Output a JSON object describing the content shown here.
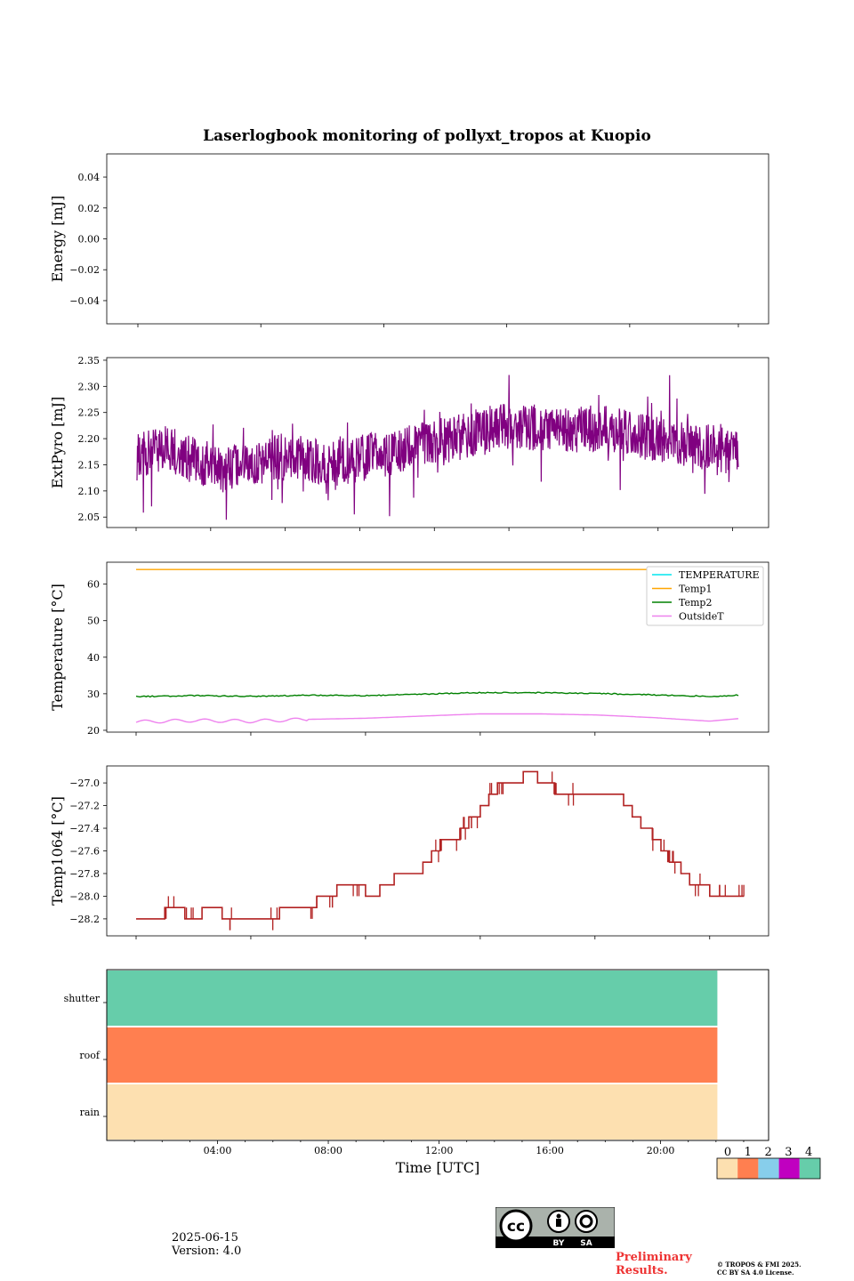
{
  "title": "Laserlogbook monitoring of pollyxt_tropos at Kuopio",
  "footer": {
    "date": "2025-06-15",
    "version": "Version: 4.0",
    "preliminary": [
      "Preliminary",
      "Results."
    ],
    "copyright": [
      "© TROPOS & FMI 2025.",
      "CC BY SA 4.0 License."
    ],
    "license_badge": [
      "BY",
      "SA"
    ]
  },
  "colors": {
    "extpyro": "#800080",
    "temperature": "#00e5ee",
    "temp1": "#ffa500",
    "temp2": "#008000",
    "outside": "#ee82ee",
    "temp1064": "#b22222",
    "status0": "#fde0b0",
    "status1": "#ff7f50",
    "status2": "#87ceeb",
    "status3": "#c000c0",
    "status4": "#66cdaa"
  },
  "chart_data": [
    {
      "type": "line",
      "ylabel": "Energy [mJ]",
      "yticks": [
        "0.04",
        "0.02",
        "0.00",
        "−0.02",
        "−0.04"
      ],
      "ylim": [
        -0.055,
        0.055
      ],
      "series": []
    },
    {
      "type": "line",
      "ylabel": "ExtPyro [mJ]",
      "yticks": [
        "2.35",
        "2.30",
        "2.25",
        "2.20",
        "2.15",
        "2.10",
        "2.05"
      ],
      "ylim": [
        2.03,
        2.355
      ],
      "x_hours": [
        1,
        2,
        3,
        4,
        5,
        6,
        7,
        8,
        9,
        10,
        11,
        12,
        13,
        14,
        15,
        16,
        17,
        18,
        19,
        20,
        21,
        22
      ],
      "series": [
        {
          "mean": [
            2.165,
            2.18,
            2.16,
            2.14,
            2.15,
            2.165,
            2.16,
            2.155,
            2.165,
            2.17,
            2.19,
            2.2,
            2.215,
            2.225,
            2.22,
            2.215,
            2.22,
            2.215,
            2.2,
            2.19,
            2.185,
            2.17
          ],
          "min": 2.045,
          "max": 2.34
        }
      ]
    },
    {
      "type": "line",
      "ylabel": "Temperature [°C]",
      "yticks": [
        "60",
        "50",
        "40",
        "30",
        "20"
      ],
      "ylim": [
        19.5,
        66
      ],
      "x_hours": [
        1,
        3,
        5,
        7,
        9,
        11,
        13,
        15,
        17,
        19,
        21,
        22
      ],
      "legend": [
        "TEMPERATURE",
        "Temp1",
        "Temp2",
        "OutsideT"
      ],
      "series": [
        {
          "name": "TEMPERATURE",
          "values": []
        },
        {
          "name": "Temp1",
          "values": [
            64,
            64,
            64,
            64,
            64,
            64,
            64,
            64,
            64,
            64,
            64,
            64
          ]
        },
        {
          "name": "Temp2",
          "values": [
            29.2,
            29.5,
            29.3,
            29.6,
            29.5,
            29.9,
            30.3,
            30.3,
            30.1,
            29.7,
            29.3,
            29.6
          ]
        },
        {
          "name": "OutsideT",
          "values": [
            22.3,
            22.7,
            22.5,
            23.0,
            23.3,
            23.9,
            24.5,
            24.5,
            24.2,
            23.5,
            22.5,
            23.2
          ]
        }
      ]
    },
    {
      "type": "line",
      "ylabel": "Temp1064 [°C]",
      "yticks": [
        "−27.0",
        "−27.2",
        "−27.4",
        "−27.6",
        "−27.8",
        "−28.0",
        "−28.2"
      ],
      "ylim": [
        -28.35,
        -26.85
      ],
      "series": [
        {
          "name": "Temp1064",
          "x": [
            1.0,
            2.0,
            2.7,
            3.3,
            4.0,
            5.0,
            5.3,
            5.6,
            6.0,
            7.0,
            7.3,
            7.6,
            8.0,
            8.5,
            9.0,
            9.5,
            10.0,
            10.5,
            11.0,
            11.3,
            11.6,
            12.0,
            12.3,
            12.6,
            13.0,
            13.3,
            13.6,
            14.0,
            14.5,
            15.0,
            15.3,
            15.6,
            16.0,
            16.5,
            17.0,
            17.5,
            18.0,
            18.3,
            18.6,
            19.0,
            19.3,
            19.6,
            20.0,
            20.3,
            20.6,
            21.0,
            21.3,
            21.6,
            22.0,
            22.2
          ],
          "values": [
            -28.2,
            -28.1,
            -28.2,
            -28.1,
            -28.2,
            -28.2,
            -28.2,
            -28.2,
            -28.1,
            -28.1,
            -28.0,
            -28.0,
            -27.9,
            -27.9,
            -28.0,
            -27.9,
            -27.8,
            -27.8,
            -27.7,
            -27.6,
            -27.5,
            -27.5,
            -27.4,
            -27.3,
            -27.2,
            -27.1,
            -27.0,
            -27.0,
            -26.95,
            -27.0,
            -27.0,
            -27.1,
            -27.1,
            -27.1,
            -27.15,
            -27.15,
            -27.2,
            -27.3,
            -27.4,
            -27.5,
            -27.6,
            -27.7,
            -27.8,
            -27.9,
            -27.95,
            -28.0,
            -28.0,
            -28.05,
            -28.0,
            -28.0
          ]
        }
      ]
    },
    {
      "type": "heatmap",
      "rows": [
        "shutter",
        "roof",
        "rain"
      ],
      "row_status": [
        4,
        1,
        0
      ],
      "end_hour": 22.05,
      "xlabel": "Time [UTC]",
      "xticks": [
        "04:00",
        "08:00",
        "12:00",
        "16:00",
        "20:00"
      ],
      "xtick_hours": [
        4,
        8,
        12,
        16,
        20
      ],
      "colorbar_labels": [
        "0",
        "1",
        "2",
        "3",
        "4"
      ]
    }
  ]
}
